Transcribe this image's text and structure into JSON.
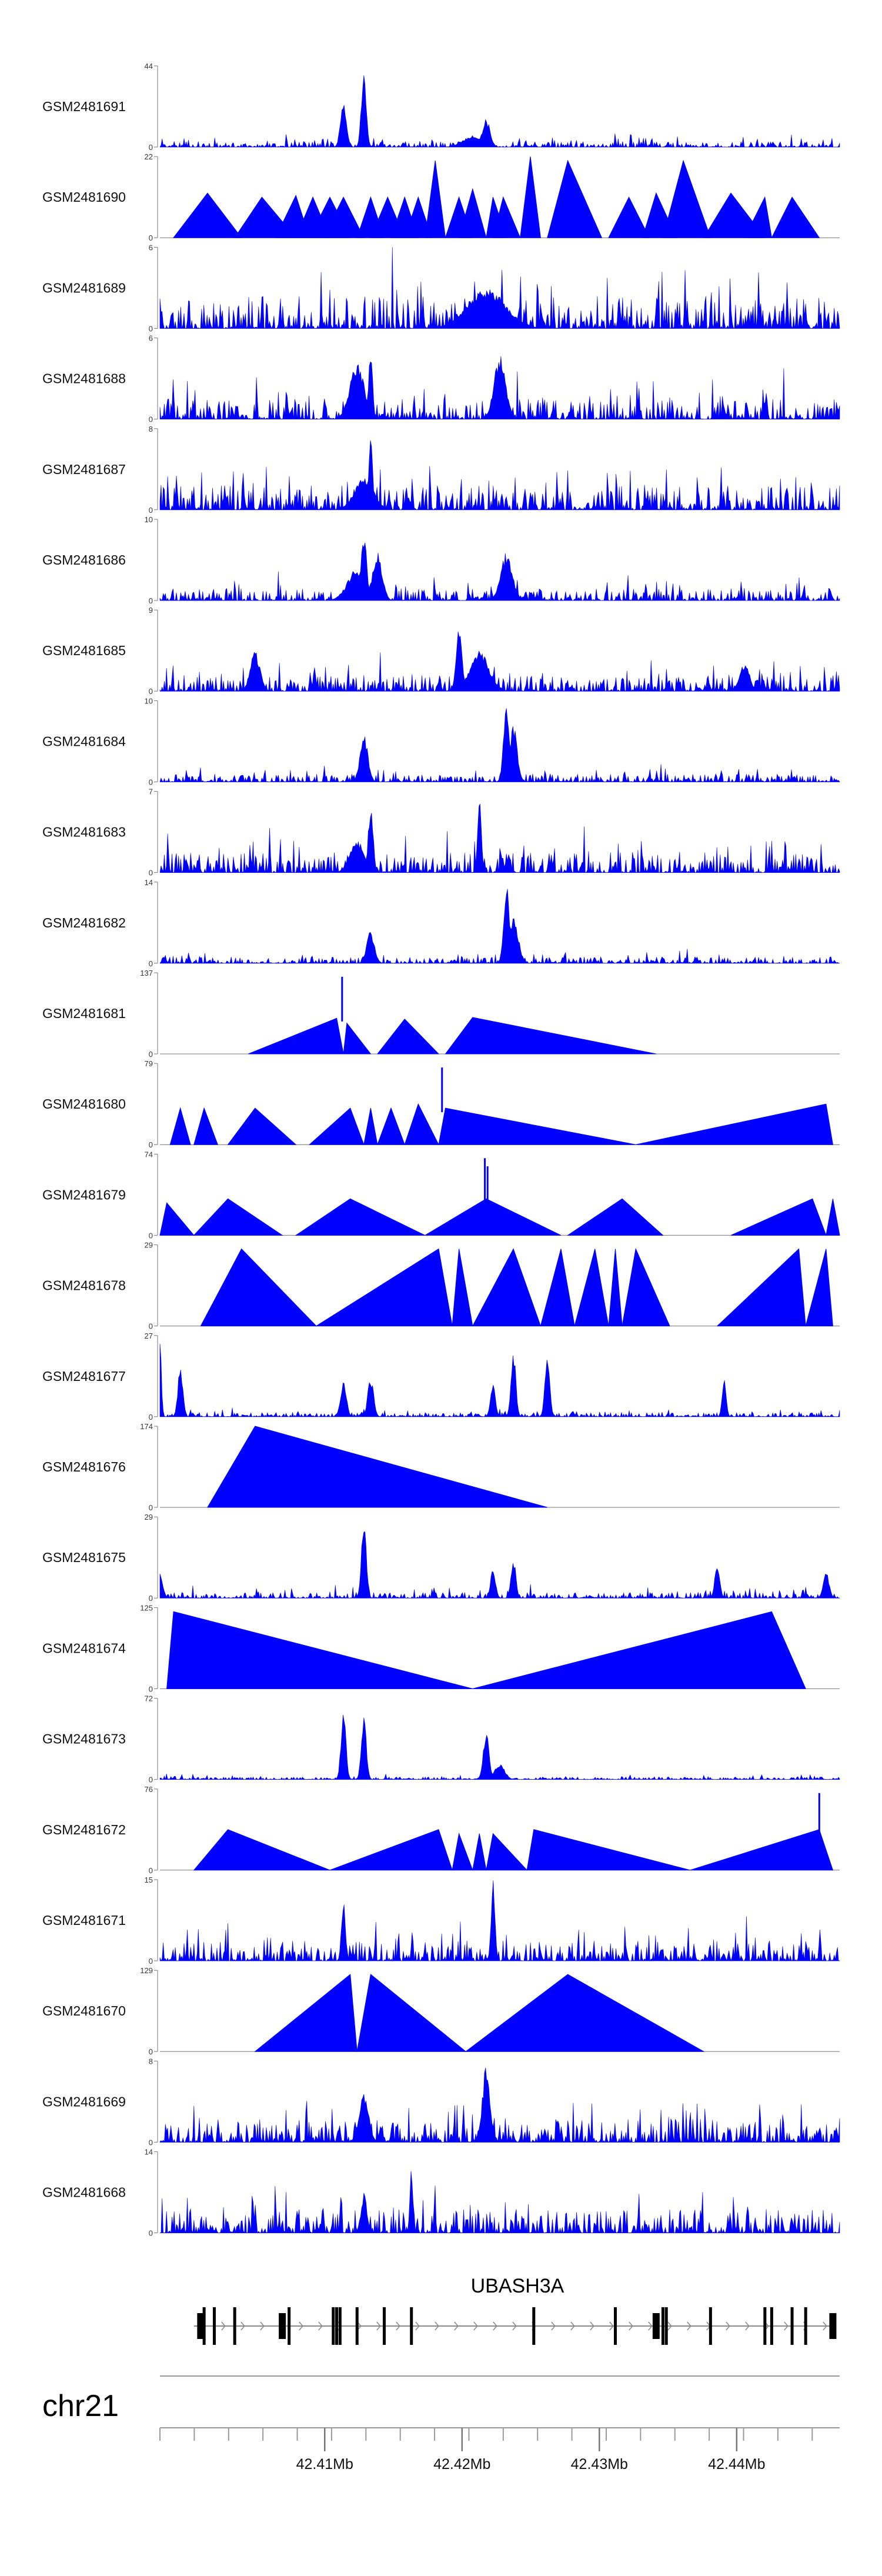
{
  "chart_data": {
    "type": "area",
    "title": "",
    "chromosome": "chr21",
    "gene": "UBASH3A",
    "xlim": [
      42.398,
      42.4475
    ],
    "x_ticks": [
      42.41,
      42.42,
      42.43,
      42.44
    ],
    "x_tick_labels": [
      "42.41Mb",
      "42.42Mb",
      "42.43Mb",
      "42.44Mb"
    ],
    "fill_color": "#0000ff",
    "tracks": [
      {
        "name": "GSM2481691",
        "ymax": 44,
        "style": "dense",
        "noise": 0.07,
        "peaks": [
          [
            0.27,
            0.6,
            0.006
          ],
          [
            0.3,
            1.0,
            0.005
          ],
          [
            0.48,
            0.35,
            0.008
          ],
          [
            0.46,
            0.14,
            0.02
          ]
        ]
      },
      {
        "name": "GSM2481690",
        "ymax": 22,
        "style": "tri",
        "triangles": [
          [
            0.02,
            0.07,
            0.12,
            0.55
          ],
          [
            0.11,
            0.15,
            0.2,
            0.5
          ],
          [
            0.17,
            0.2,
            0.22,
            0.52
          ],
          [
            0.2,
            0.225,
            0.25,
            0.5
          ],
          [
            0.22,
            0.25,
            0.28,
            0.5
          ],
          [
            0.24,
            0.27,
            0.3,
            0.5
          ],
          [
            0.29,
            0.31,
            0.33,
            0.5
          ],
          [
            0.31,
            0.335,
            0.36,
            0.5
          ],
          [
            0.34,
            0.36,
            0.38,
            0.5
          ],
          [
            0.36,
            0.38,
            0.4,
            0.5
          ],
          [
            0.39,
            0.405,
            0.42,
            0.95
          ],
          [
            0.42,
            0.44,
            0.46,
            0.5
          ],
          [
            0.44,
            0.46,
            0.48,
            0.6
          ],
          [
            0.48,
            0.49,
            0.51,
            0.5
          ],
          [
            0.49,
            0.505,
            0.53,
            0.5
          ],
          [
            0.53,
            0.545,
            0.56,
            1.0
          ],
          [
            0.57,
            0.6,
            0.65,
            0.95
          ],
          [
            0.66,
            0.69,
            0.72,
            0.5
          ],
          [
            0.71,
            0.73,
            0.76,
            0.55
          ],
          [
            0.74,
            0.77,
            0.81,
            0.95
          ],
          [
            0.8,
            0.84,
            0.89,
            0.55
          ],
          [
            0.86,
            0.89,
            0.9,
            0.5
          ],
          [
            0.9,
            0.93,
            0.97,
            0.5
          ]
        ]
      },
      {
        "name": "GSM2481689",
        "ymax": 6,
        "style": "dense",
        "noise": 0.4,
        "peaks": [
          [
            0.48,
            0.5,
            0.04
          ]
        ]
      },
      {
        "name": "GSM2481688",
        "ymax": 6,
        "style": "dense",
        "noise": 0.25,
        "peaks": [
          [
            0.29,
            0.7,
            0.015
          ],
          [
            0.31,
            0.9,
            0.004
          ],
          [
            0.5,
            0.8,
            0.012
          ]
        ]
      },
      {
        "name": "GSM2481687",
        "ymax": 8,
        "style": "dense",
        "noise": 0.3,
        "peaks": [
          [
            0.31,
            0.9,
            0.004
          ],
          [
            0.3,
            0.4,
            0.02
          ]
        ]
      },
      {
        "name": "GSM2481686",
        "ymax": 10,
        "style": "dense",
        "noise": 0.15,
        "peaks": [
          [
            0.3,
            0.85,
            0.006
          ],
          [
            0.32,
            0.6,
            0.01
          ],
          [
            0.51,
            0.6,
            0.012
          ],
          [
            0.29,
            0.4,
            0.02
          ]
        ]
      },
      {
        "name": "GSM2481685",
        "ymax": 9,
        "style": "dense",
        "noise": 0.2,
        "peaks": [
          [
            0.14,
            0.5,
            0.01
          ],
          [
            0.44,
            0.85,
            0.006
          ],
          [
            0.47,
            0.5,
            0.02
          ],
          [
            0.86,
            0.35,
            0.01
          ]
        ]
      },
      {
        "name": "GSM2481684",
        "ymax": 10,
        "style": "dense",
        "noise": 0.1,
        "peaks": [
          [
            0.3,
            0.6,
            0.008
          ],
          [
            0.51,
            1.0,
            0.006
          ],
          [
            0.52,
            0.7,
            0.008
          ]
        ]
      },
      {
        "name": "GSM2481683",
        "ymax": 7,
        "style": "dense",
        "noise": 0.25,
        "peaks": [
          [
            0.31,
            0.85,
            0.005
          ],
          [
            0.47,
            0.9,
            0.004
          ],
          [
            0.29,
            0.4,
            0.015
          ]
        ]
      },
      {
        "name": "GSM2481682",
        "ymax": 14,
        "style": "dense",
        "noise": 0.08,
        "peaks": [
          [
            0.31,
            0.4,
            0.008
          ],
          [
            0.51,
            1.0,
            0.006
          ],
          [
            0.52,
            0.6,
            0.01
          ]
        ]
      },
      {
        "name": "GSM2481681",
        "ymax": 137,
        "style": "tri",
        "triangles": [
          [
            0.13,
            0.26,
            0.27,
            0.44
          ],
          [
            0.27,
            0.275,
            0.31,
            0.38
          ],
          [
            0.32,
            0.36,
            0.41,
            0.43
          ],
          [
            0.42,
            0.46,
            0.73,
            0.45
          ]
        ],
        "spikes": [
          [
            0.268,
            0.95
          ]
        ]
      },
      {
        "name": "GSM2481680",
        "ymax": 79,
        "style": "tri",
        "triangles": [
          [
            0.015,
            0.03,
            0.045,
            0.45
          ],
          [
            0.05,
            0.065,
            0.085,
            0.45
          ],
          [
            0.1,
            0.14,
            0.2,
            0.45
          ],
          [
            0.22,
            0.28,
            0.3,
            0.45
          ],
          [
            0.3,
            0.31,
            0.32,
            0.45
          ],
          [
            0.32,
            0.34,
            0.36,
            0.45
          ],
          [
            0.36,
            0.38,
            0.41,
            0.5
          ],
          [
            0.41,
            0.42,
            0.7,
            0.45
          ],
          [
            0.7,
            0.98,
            0.99,
            0.5
          ]
        ],
        "spikes": [
          [
            0.415,
            0.95
          ]
        ]
      },
      {
        "name": "GSM2481679",
        "ymax": 74,
        "style": "tri",
        "triangles": [
          [
            0.0,
            0.01,
            0.05,
            0.4
          ],
          [
            0.05,
            0.1,
            0.18,
            0.45
          ],
          [
            0.2,
            0.28,
            0.39,
            0.45
          ],
          [
            0.39,
            0.48,
            0.59,
            0.45
          ],
          [
            0.6,
            0.68,
            0.74,
            0.45
          ],
          [
            0.84,
            0.96,
            0.98,
            0.45
          ],
          [
            0.98,
            0.99,
            1.0,
            0.45
          ]
        ],
        "spikes": [
          [
            0.478,
            0.95
          ],
          [
            0.482,
            0.85
          ]
        ]
      },
      {
        "name": "GSM2481678",
        "ymax": 29,
        "style": "tri",
        "triangles": [
          [
            0.06,
            0.12,
            0.23,
            0.95
          ],
          [
            0.23,
            0.41,
            0.43,
            0.95
          ],
          [
            0.43,
            0.44,
            0.46,
            0.95
          ],
          [
            0.46,
            0.52,
            0.56,
            0.95
          ],
          [
            0.56,
            0.59,
            0.61,
            0.95
          ],
          [
            0.61,
            0.64,
            0.66,
            0.95
          ],
          [
            0.66,
            0.67,
            0.68,
            0.95
          ],
          [
            0.68,
            0.7,
            0.75,
            0.95
          ],
          [
            0.82,
            0.94,
            0.95,
            0.95
          ],
          [
            0.95,
            0.98,
            0.99,
            0.95
          ]
        ]
      },
      {
        "name": "GSM2481677",
        "ymax": 27,
        "style": "dense",
        "noise": 0.05,
        "peaks": [
          [
            0.0,
            1.0,
            0.003
          ],
          [
            0.03,
            0.65,
            0.005
          ],
          [
            0.27,
            0.45,
            0.006
          ],
          [
            0.31,
            0.5,
            0.006
          ],
          [
            0.49,
            0.45,
            0.005
          ],
          [
            0.52,
            0.85,
            0.005
          ],
          [
            0.57,
            0.75,
            0.005
          ],
          [
            0.83,
            0.5,
            0.004
          ]
        ]
      },
      {
        "name": "GSM2481676",
        "ymax": 174,
        "style": "tri",
        "triangles": [
          [
            0.07,
            0.14,
            0.57,
            1.0
          ]
        ]
      },
      {
        "name": "GSM2481675",
        "ymax": 29,
        "style": "dense",
        "noise": 0.07,
        "peaks": [
          [
            0.0,
            0.3,
            0.006
          ],
          [
            0.3,
            1.0,
            0.005
          ],
          [
            0.49,
            0.4,
            0.005
          ],
          [
            0.52,
            0.5,
            0.005
          ],
          [
            0.82,
            0.45,
            0.005
          ],
          [
            0.98,
            0.35,
            0.006
          ]
        ]
      },
      {
        "name": "GSM2481674",
        "ymax": 125,
        "style": "tri",
        "triangles": [
          [
            0.01,
            0.02,
            0.46,
            0.95
          ],
          [
            0.46,
            0.9,
            0.95,
            0.95
          ]
        ]
      },
      {
        "name": "GSM2481673",
        "ymax": 72,
        "style": "dense",
        "noise": 0.03,
        "peaks": [
          [
            0.27,
            0.9,
            0.005
          ],
          [
            0.3,
            0.85,
            0.005
          ],
          [
            0.48,
            0.6,
            0.006
          ],
          [
            0.5,
            0.2,
            0.01
          ]
        ]
      },
      {
        "name": "GSM2481672",
        "ymax": 76,
        "style": "tri",
        "triangles": [
          [
            0.05,
            0.1,
            0.25,
            0.5
          ],
          [
            0.25,
            0.41,
            0.43,
            0.5
          ],
          [
            0.43,
            0.44,
            0.46,
            0.45
          ],
          [
            0.46,
            0.47,
            0.48,
            0.45
          ],
          [
            0.48,
            0.49,
            0.54,
            0.45
          ],
          [
            0.54,
            0.55,
            0.78,
            0.5
          ],
          [
            0.78,
            0.97,
            0.99,
            0.5
          ]
        ],
        "spikes": [
          [
            0.97,
            0.95
          ],
          [
            0.1,
            0.35
          ]
        ]
      },
      {
        "name": "GSM2481671",
        "ymax": 15,
        "style": "dense",
        "noise": 0.25,
        "peaks": [
          [
            0.27,
            0.8,
            0.004
          ],
          [
            0.49,
            1.0,
            0.004
          ]
        ]
      },
      {
        "name": "GSM2481670",
        "ymax": 129,
        "style": "tri",
        "triangles": [
          [
            0.14,
            0.28,
            0.29,
            0.95
          ],
          [
            0.29,
            0.31,
            0.45,
            0.95
          ],
          [
            0.45,
            0.6,
            0.8,
            0.95
          ]
        ]
      },
      {
        "name": "GSM2481669",
        "ymax": 8,
        "style": "dense",
        "noise": 0.3,
        "peaks": [
          [
            0.48,
            0.95,
            0.008
          ],
          [
            0.3,
            0.6,
            0.01
          ]
        ]
      },
      {
        "name": "GSM2481668",
        "ymax": 14,
        "style": "dense",
        "noise": 0.3,
        "peaks": [
          [
            0.37,
            0.9,
            0.003
          ],
          [
            0.3,
            0.5,
            0.006
          ]
        ]
      }
    ],
    "gene_model": {
      "start": 0.05,
      "end": 0.995,
      "exons": [
        0.06,
        0.065,
        0.08,
        0.11,
        0.18,
        0.19,
        0.255,
        0.26,
        0.265,
        0.29,
        0.33,
        0.37,
        0.55,
        0.67,
        0.73,
        0.74,
        0.745,
        0.81,
        0.89,
        0.9,
        0.93,
        0.95,
        0.99
      ]
    }
  }
}
